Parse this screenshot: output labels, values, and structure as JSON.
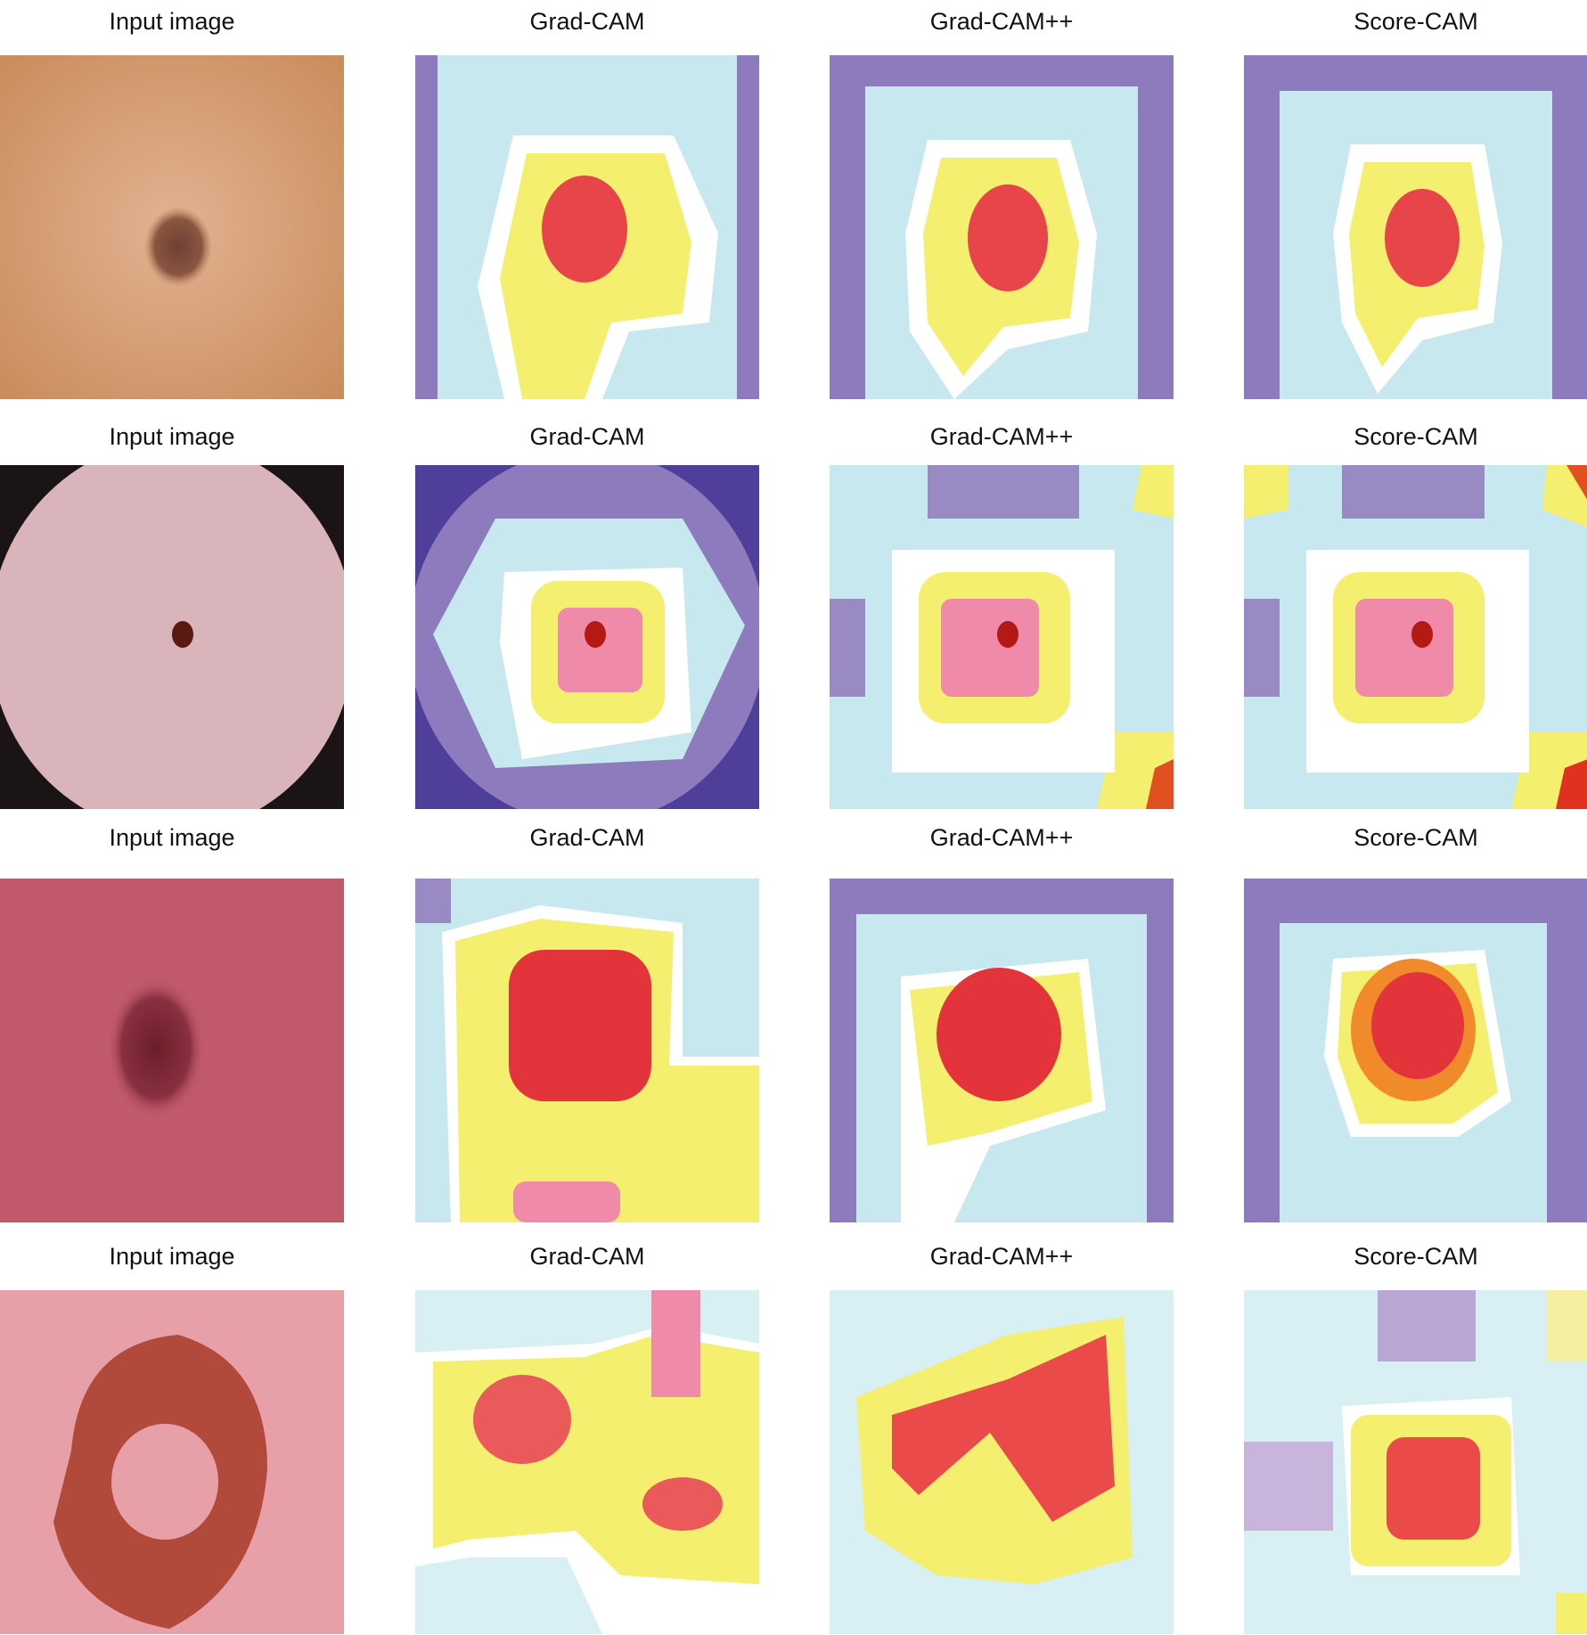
{
  "columns": [
    "Input image",
    "Grad-CAM",
    "Grad-CAM++",
    "Score-CAM"
  ],
  "rows": [
    {
      "input_skin": "#d9a07a",
      "lesion_color": "#7a4a3a"
    },
    {
      "input_skin": "#d9b7bd",
      "lesion_color": "#5a1a10"
    },
    {
      "input_skin": "#c25a6a",
      "lesion_color": "#6a1e28"
    },
    {
      "input_skin": "#e9a1a8",
      "lesion_color": "#a0422e"
    }
  ],
  "colors": {
    "cam_low": "#8a76b8",
    "cam_mid": "#bfe6ec",
    "cam_ring": "#ffffff",
    "cam_high": "#f6ef6a",
    "cam_peak": "#e23a3a"
  }
}
